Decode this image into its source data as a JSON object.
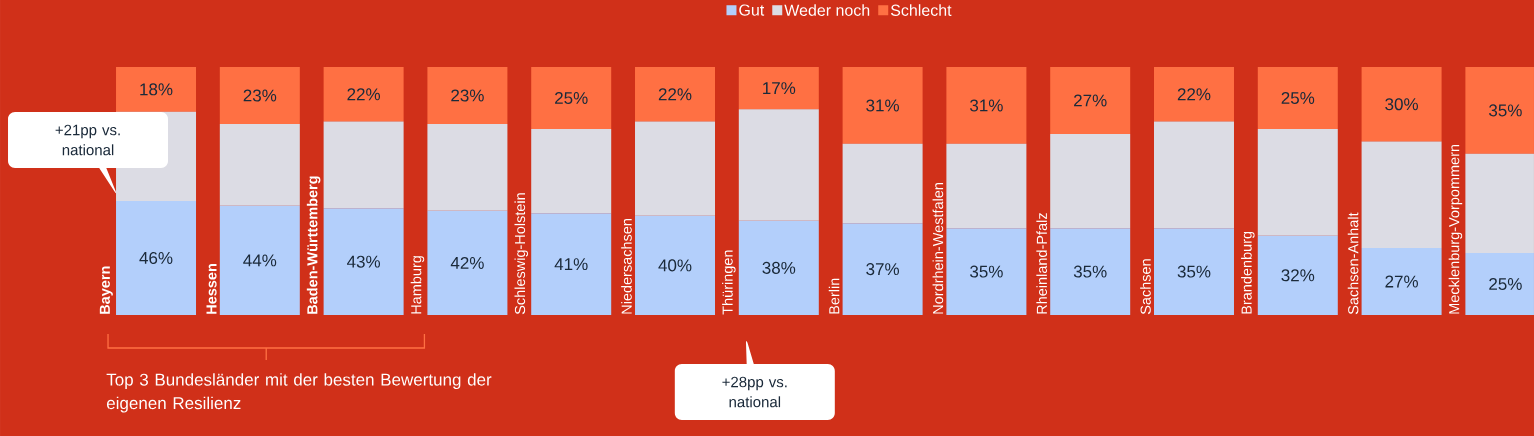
{
  "chart_data": {
    "type": "bar",
    "stacked": true,
    "categories": [
      "**Bayern**",
      "**Hessen**",
      "**Baden-Württemberg**",
      "Hamburg",
      "Schleswig-Holstein",
      "Niedersachsen",
      "Thüringen",
      "Berlin",
      "Nordrhein-Westfalen",
      "Rheinland-Pfalz",
      "Sachsen",
      "Brandenburg",
      "Sachsen-Anhalt",
      "Mecklenburg-Vorpommern"
    ],
    "series": [
      {
        "name": "Gut",
        "color": "#b3cffb",
        "values": [
          46,
          44,
          43,
          42,
          41,
          40,
          38,
          37,
          35,
          35,
          35,
          32,
          27,
          25
        ],
        "value_labels": [
          "46%",
          "44%",
          "43%",
          "42%",
          "41%",
          "40%",
          "38%",
          "37%",
          "35%",
          "35%",
          "35%",
          "32%",
          "27%",
          "25%"
        ]
      },
      {
        "name": "Weder noch",
        "color": "#dcdce4",
        "values": [
          36,
          33,
          35,
          35,
          34,
          38,
          45,
          32,
          34,
          38,
          43,
          43,
          43,
          40
        ]
      },
      {
        "name": "Schlecht",
        "color": "#ff7043",
        "values": [
          18,
          23,
          22,
          23,
          25,
          22,
          17,
          31,
          31,
          27,
          22,
          25,
          30,
          35
        ],
        "value_labels": [
          "18%",
          "23%",
          "22%",
          "23%",
          "25%",
          "22%",
          "17%",
          "31%",
          "31%",
          "27%",
          "22%",
          "25%",
          "30%",
          "35%"
        ]
      }
    ],
    "ylim": [
      0,
      100
    ],
    "tick_labels": "x",
    "legend": "top",
    "annotations": [
      "+21pp vs. national",
      "+28pp vs. national",
      "Top 3 Bundesländer mit der besten Bewertung der eigenen Resilienz"
    ]
  }
}
